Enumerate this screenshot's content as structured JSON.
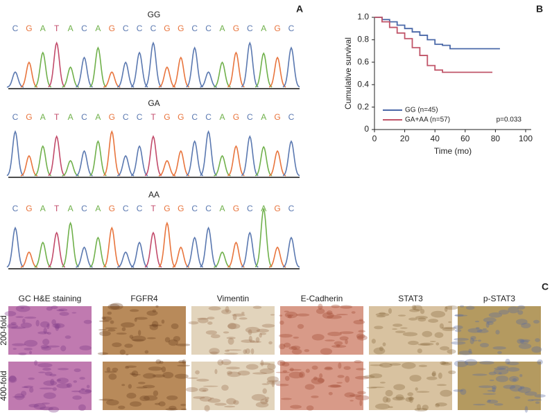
{
  "panel_labels": [
    "A",
    "B",
    "C"
  ],
  "sequencing": [
    {
      "genotype": "GG",
      "bases": [
        "C",
        "G",
        "A",
        "T",
        "A",
        "C",
        "A",
        "G",
        "C",
        "C",
        "C",
        "G",
        "G",
        "C",
        "C",
        "A",
        "G",
        "C",
        "A",
        "G",
        "C"
      ]
    },
    {
      "genotype": "GA",
      "bases": [
        "C",
        "G",
        "A",
        "T",
        "A",
        "C",
        "A",
        "G",
        "C",
        "C",
        "T",
        "G",
        "G",
        "C",
        "C",
        "A",
        "G",
        "C",
        "A",
        "G",
        "C"
      ]
    },
    {
      "genotype": "AA",
      "bases": [
        "C",
        "G",
        "A",
        "T",
        "A",
        "C",
        "A",
        "G",
        "C",
        "C",
        "T",
        "G",
        "G",
        "C",
        "C",
        "A",
        "G",
        "C",
        "A",
        "G",
        "C"
      ]
    }
  ],
  "chart_data": {
    "type": "line",
    "xlabel": "Time (mo)",
    "ylabel": "Cumulative survival",
    "annotation": "p=0.033",
    "xlim": [
      0,
      100
    ],
    "xticks": [
      0,
      20,
      40,
      60,
      80,
      100
    ],
    "ylim": [
      0,
      1
    ],
    "yticks": [
      0,
      0.2,
      0.4,
      0.6,
      0.8,
      {
        "value": 1,
        "label": "1.0"
      }
    ],
    "series": [
      {
        "name": "GG (n=45)",
        "color": "#4a68a8",
        "x": [
          0,
          5,
          10,
          15,
          20,
          25,
          30,
          35,
          40,
          45,
          50,
          83
        ],
        "values": [
          1,
          0.98,
          0.96,
          0.93,
          0.9,
          0.87,
          0.84,
          0.8,
          0.76,
          0.75,
          0.72,
          0.72
        ]
      },
      {
        "name": "GA+AA (n=57)",
        "color": "#c05468",
        "x": [
          0,
          5,
          10,
          15,
          20,
          25,
          30,
          35,
          40,
          45,
          50,
          78
        ],
        "values": [
          1,
          0.96,
          0.91,
          0.86,
          0.81,
          0.73,
          0.66,
          0.57,
          0.53,
          0.51,
          0.51,
          0.51
        ]
      }
    ]
  },
  "staining": {
    "columns": [
      "GC H&E staining",
      "FGFR4",
      "Vimentin",
      "E-Cadherin",
      "STAT3",
      "p-STAT3"
    ],
    "rows": [
      "200-fold",
      "400-fold"
    ]
  }
}
